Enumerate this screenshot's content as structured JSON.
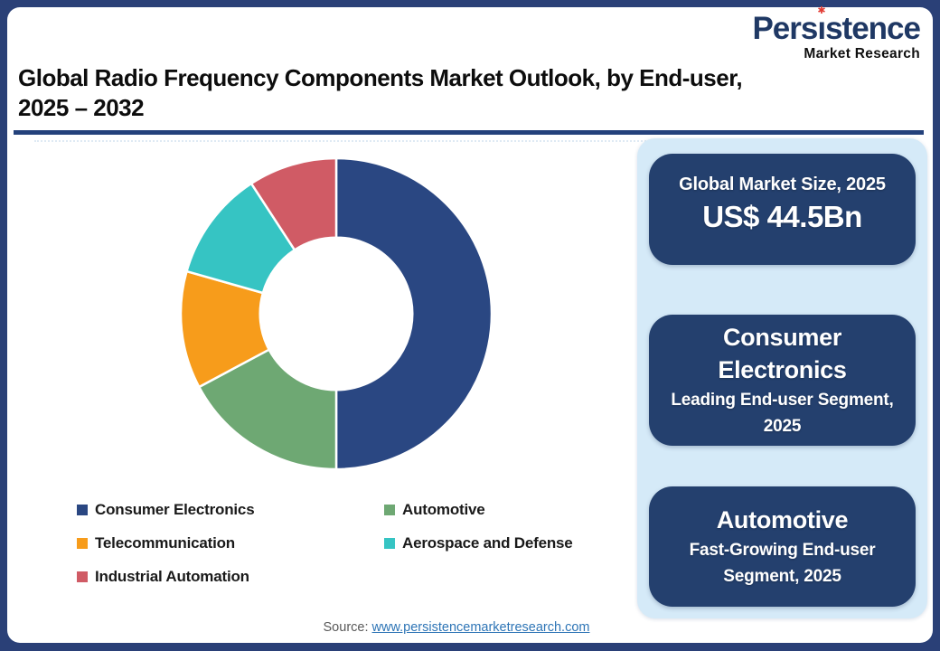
{
  "brand": {
    "logo_part1": "Pers",
    "logo_dotless_i": "ı",
    "logo_part2": "stence",
    "logo_i_mark_glyph": "✱",
    "logo_tagline": "Market Research"
  },
  "header": {
    "title_line1": "Global Radio Frequency Components Market Outlook, by End-user,",
    "title_line2": "2025 – 2032"
  },
  "chart_data": {
    "type": "pie",
    "donut": true,
    "title": "Global Radio Frequency Components Market Outlook, by End-user, 2025 – 2032",
    "start_angle_deg": 0,
    "direction": "clockwise",
    "inner_radius_ratio": 0.49,
    "legend_position": "bottom",
    "segments": [
      {
        "label": "Consumer Electronics",
        "value": 50.0,
        "color": "#2A4782"
      },
      {
        "label": "Automotive",
        "value": 17.2,
        "color": "#6EA873"
      },
      {
        "label": "Telecommunication",
        "value": 12.2,
        "color": "#F79C1B"
      },
      {
        "label": "Aerospace and Defense",
        "value": 11.4,
        "color": "#36C4C3"
      },
      {
        "label": "Industrial Automation",
        "value": 9.2,
        "color": "#D05B65"
      }
    ]
  },
  "info_panel": {
    "cards": [
      {
        "heading": "Global Market Size, 2025",
        "value": "US$ 44.5Bn"
      },
      {
        "heading": "Consumer Electronics",
        "subtext": "Leading End-user Segment, 2025"
      },
      {
        "heading": "Automotive",
        "subtext": "Fast-Growing End-user Segment, 2025"
      }
    ]
  },
  "footer": {
    "source_label": "Source:",
    "source_link": "www.persistencemarketresearch.com"
  },
  "theme": {
    "frame_navy": "#2A4077",
    "rule_navy": "#24417B",
    "card_navy": "#24406E",
    "panel_blue": "#D5EAF8",
    "link_blue": "#2E75B6",
    "logo_blue": "#1F3864",
    "logo_red": "#E23B33",
    "source_gray": "#595959"
  }
}
